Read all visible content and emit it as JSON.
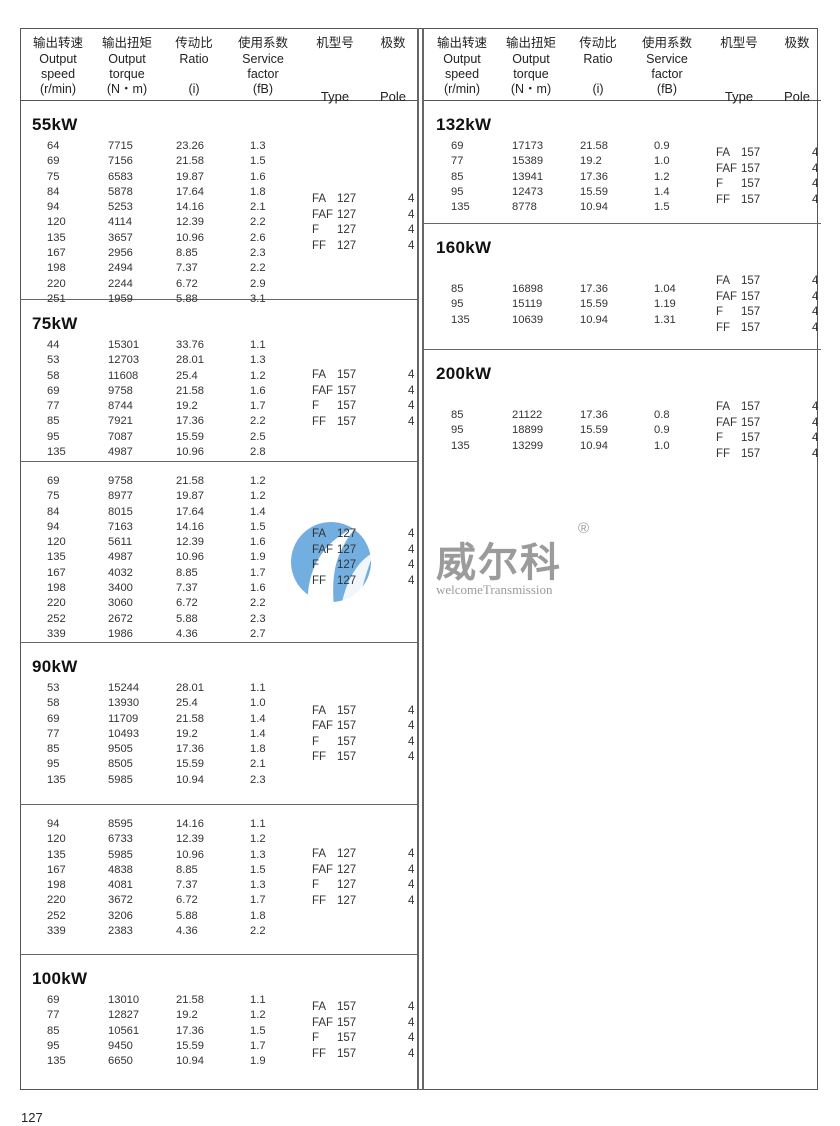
{
  "header": {
    "columns": [
      {
        "cn": "输出转速",
        "en": [
          "Output",
          "speed"
        ],
        "unit": "(r/min)"
      },
      {
        "cn": "输出扭矩",
        "en": [
          "Output",
          "torque"
        ],
        "unit": "(N・m)"
      },
      {
        "cn": "传动比",
        "en": [
          "Ratio"
        ],
        "unit": "(i)"
      },
      {
        "cn": "使用系数",
        "en": [
          "Service",
          "factor"
        ],
        "unit": "(fB)"
      },
      {
        "cn": "机型号",
        "en": [],
        "unit": "Type"
      },
      {
        "cn": "极数",
        "en": [],
        "unit": "Pole"
      }
    ]
  },
  "left": [
    {
      "title": "55kW",
      "rows": [
        [
          "64",
          "7715",
          "23.26",
          "1.3"
        ],
        [
          "69",
          "7156",
          "21.58",
          "1.5"
        ],
        [
          "75",
          "6583",
          "19.87",
          "1.6"
        ],
        [
          "84",
          "5878",
          "17.64",
          "1.8"
        ],
        [
          "94",
          "5253",
          "14.16",
          "2.1"
        ],
        [
          "120",
          "4114",
          "12.39",
          "2.2"
        ],
        [
          "135",
          "3657",
          "10.96",
          "2.6"
        ],
        [
          "167",
          "2956",
          "8.85",
          "2.3"
        ],
        [
          "198",
          "2494",
          "7.37",
          "2.2"
        ],
        [
          "220",
          "2244",
          "6.72",
          "2.9"
        ],
        [
          "251",
          "1959",
          "5.88",
          "3.1"
        ]
      ],
      "types": [
        [
          "FA",
          "127",
          "4"
        ],
        [
          "FAF",
          "127",
          "4"
        ],
        [
          "F",
          "127",
          "4"
        ],
        [
          "FF",
          "127",
          "4"
        ]
      ]
    },
    {
      "title": "75kW",
      "rows": [
        [
          "44",
          "15301",
          "33.76",
          "1.1"
        ],
        [
          "53",
          "12703",
          "28.01",
          "1.3"
        ],
        [
          "58",
          "11608",
          "25.4",
          "1.2"
        ],
        [
          "69",
          "9758",
          "21.58",
          "1.6"
        ],
        [
          "77",
          "8744",
          "19.2",
          "1.7"
        ],
        [
          "85",
          "7921",
          "17.36",
          "2.2"
        ],
        [
          "95",
          "7087",
          "15.59",
          "2.5"
        ],
        [
          "135",
          "4987",
          "10.96",
          "2.8"
        ]
      ],
      "types": [
        [
          "FA",
          "157",
          "4"
        ],
        [
          "FAF",
          "157",
          "4"
        ],
        [
          "F",
          "157",
          "4"
        ],
        [
          "FF",
          "157",
          "4"
        ]
      ]
    },
    {
      "title": "",
      "rows": [
        [
          "69",
          "9758",
          "21.58",
          "1.2"
        ],
        [
          "75",
          "8977",
          "19.87",
          "1.2"
        ],
        [
          "84",
          "8015",
          "17.64",
          "1.4"
        ],
        [
          "94",
          "7163",
          "14.16",
          "1.5"
        ],
        [
          "120",
          "5611",
          "12.39",
          "1.6"
        ],
        [
          "135",
          "4987",
          "10.96",
          "1.9"
        ],
        [
          "167",
          "4032",
          "8.85",
          "1.7"
        ],
        [
          "198",
          "3400",
          "7.37",
          "1.6"
        ],
        [
          "220",
          "3060",
          "6.72",
          "2.2"
        ],
        [
          "252",
          "2672",
          "5.88",
          "2.3"
        ],
        [
          "339",
          "1986",
          "4.36",
          "2.7"
        ]
      ],
      "types": [
        [
          "FA",
          "127",
          "4"
        ],
        [
          "FAF",
          "127",
          "4"
        ],
        [
          "F",
          "127",
          "4"
        ],
        [
          "FF",
          "127",
          "4"
        ]
      ]
    },
    {
      "title": "90kW",
      "rows": [
        [
          "53",
          "15244",
          "28.01",
          "1.1"
        ],
        [
          "58",
          "13930",
          "25.4",
          "1.0"
        ],
        [
          "69",
          "11709",
          "21.58",
          "1.4"
        ],
        [
          "77",
          "10493",
          "19.2",
          "1.4"
        ],
        [
          "85",
          "9505",
          "17.36",
          "1.8"
        ],
        [
          "95",
          "8505",
          "15.59",
          "2.1"
        ],
        [
          "135",
          "5985",
          "10.94",
          "2.3"
        ]
      ],
      "types": [
        [
          "FA",
          "157",
          "4"
        ],
        [
          "FAF",
          "157",
          "4"
        ],
        [
          "F",
          "157",
          "4"
        ],
        [
          "FF",
          "157",
          "4"
        ]
      ]
    },
    {
      "title": "",
      "rows": [
        [
          "94",
          "8595",
          "14.16",
          "1.1"
        ],
        [
          "120",
          "6733",
          "12.39",
          "1.2"
        ],
        [
          "135",
          "5985",
          "10.96",
          "1.3"
        ],
        [
          "167",
          "4838",
          "8.85",
          "1.5"
        ],
        [
          "198",
          "4081",
          "7.37",
          "1.3"
        ],
        [
          "220",
          "3672",
          "6.72",
          "1.7"
        ],
        [
          "252",
          "3206",
          "5.88",
          "1.8"
        ],
        [
          "339",
          "2383",
          "4.36",
          "2.2"
        ]
      ],
      "types": [
        [
          "FA",
          "127",
          "4"
        ],
        [
          "FAF",
          "127",
          "4"
        ],
        [
          "F",
          "127",
          "4"
        ],
        [
          "FF",
          "127",
          "4"
        ]
      ]
    },
    {
      "title": "100kW",
      "rows": [
        [
          "69",
          "13010",
          "21.58",
          "1.1"
        ],
        [
          "77",
          "12827",
          "19.2",
          "1.2"
        ],
        [
          "85",
          "10561",
          "17.36",
          "1.5"
        ],
        [
          "95",
          "9450",
          "15.59",
          "1.7"
        ],
        [
          "135",
          "6650",
          "10.94",
          "1.9"
        ]
      ],
      "types": [
        [
          "FA",
          "157",
          "4"
        ],
        [
          "FAF",
          "157",
          "4"
        ],
        [
          "F",
          "157",
          "4"
        ],
        [
          "FF",
          "157",
          "4"
        ]
      ]
    }
  ],
  "right": [
    {
      "title": "132kW",
      "rows": [
        [
          "69",
          "17173",
          "21.58",
          "0.9"
        ],
        [
          "77",
          "15389",
          "19.2",
          "1.0"
        ],
        [
          "85",
          "13941",
          "17.36",
          "1.2"
        ],
        [
          "95",
          "12473",
          "15.59",
          "1.4"
        ],
        [
          "135",
          "8778",
          "10.94",
          "1.5"
        ]
      ],
      "types": [
        [
          "FA",
          "157",
          "4"
        ],
        [
          "FAF",
          "157",
          "4"
        ],
        [
          "F",
          "157",
          "4"
        ],
        [
          "FF",
          "157",
          "4"
        ]
      ]
    },
    {
      "title": "160kW",
      "rows": [
        [
          "85",
          "16898",
          "17.36",
          "1.04"
        ],
        [
          "95",
          "15119",
          "15.59",
          "1.19"
        ],
        [
          "135",
          "10639",
          "10.94",
          "1.31"
        ]
      ],
      "types": [
        [
          "FA",
          "157",
          "4"
        ],
        [
          "FAF",
          "157",
          "4"
        ],
        [
          "F",
          "157",
          "4"
        ],
        [
          "FF",
          "157",
          "4"
        ]
      ]
    },
    {
      "title": "200kW",
      "rows": [
        [
          "85",
          "21122",
          "17.36",
          "0.8"
        ],
        [
          "95",
          "18899",
          "15.59",
          "0.9"
        ],
        [
          "135",
          "13299",
          "10.94",
          "1.0"
        ]
      ],
      "types": [
        [
          "FA",
          "157",
          "4"
        ],
        [
          "FAF",
          "157",
          "4"
        ],
        [
          "F",
          "157",
          "4"
        ],
        [
          "FF",
          "157",
          "4"
        ]
      ]
    }
  ],
  "watermark": {
    "brand": "威尔科",
    "registered": "®",
    "subtitle": "welcomeTransmission",
    "logo_color": "#3d8fd6"
  },
  "page_number": "127"
}
